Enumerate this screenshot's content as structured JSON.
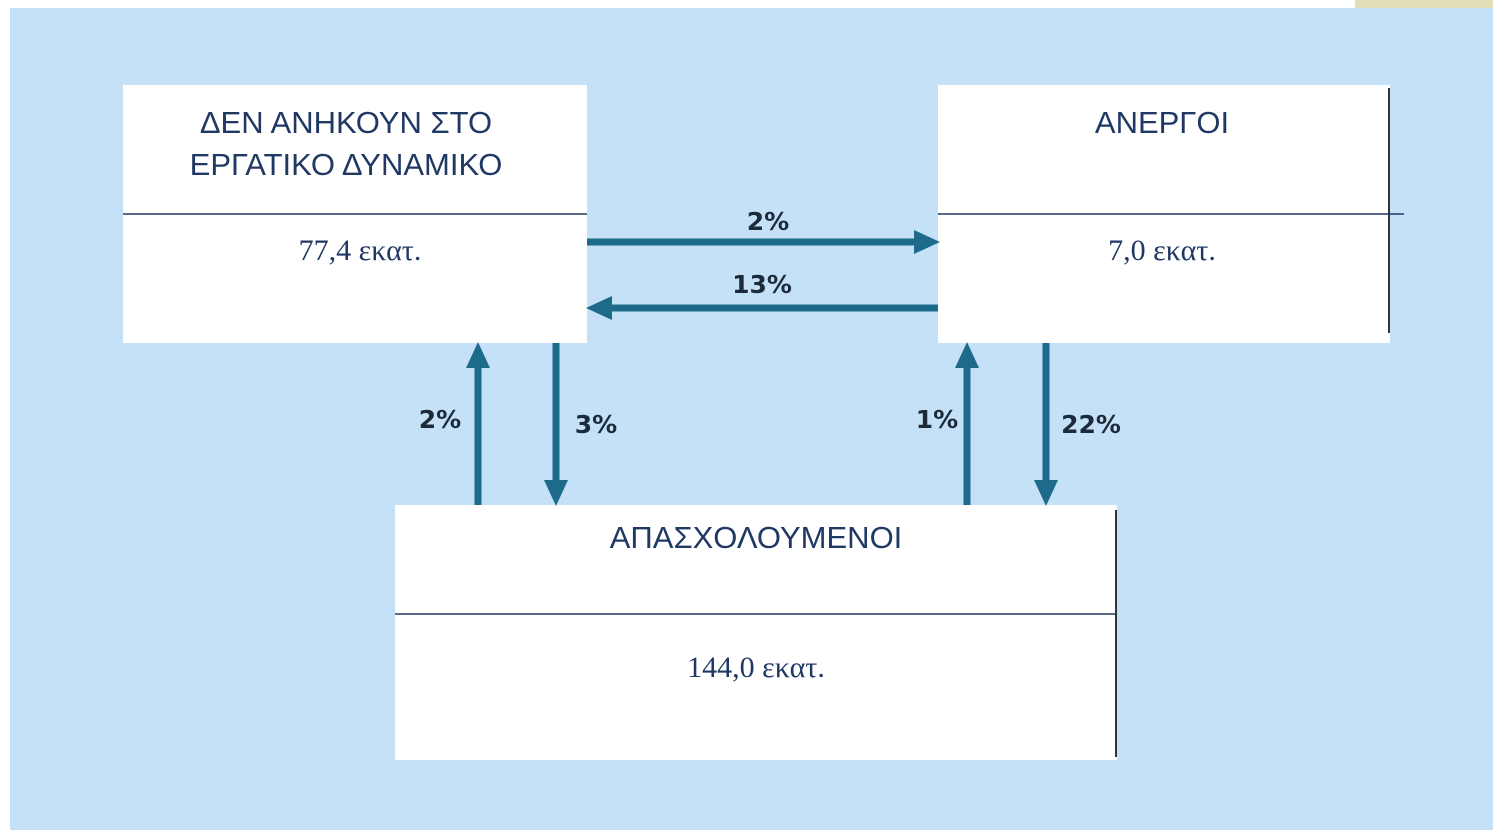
{
  "nodes": [
    {
      "title": [
        "ΔΕΝ ΑΝΗΚΟΥΝ ΣΤΟ",
        "ΕΡΓΑΤΙΚΟ ΔΥΝΑΜΙΚΟ"
      ],
      "value": "77,4 εκατ."
    },
    {
      "title": [
        "ΑΝΕΡΓΟΙ"
      ],
      "value": "7,0 εκατ."
    },
    {
      "title": [
        "ΑΠΑΣΧΟΛΟΥΜΕΝΟΙ"
      ],
      "value": "144,0 εκατ."
    }
  ],
  "flows": [
    {
      "label": "2%"
    },
    {
      "label": "13%"
    },
    {
      "label": "2%"
    },
    {
      "label": "3%"
    },
    {
      "label": "1%"
    },
    {
      "label": "22%"
    }
  ]
}
